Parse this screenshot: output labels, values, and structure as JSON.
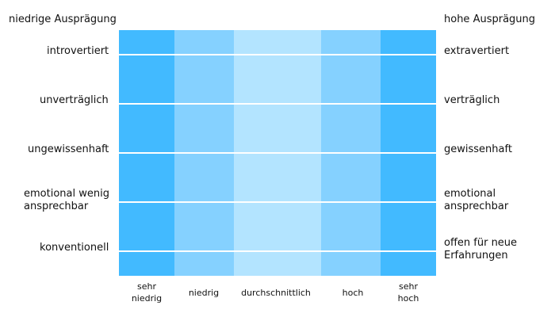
{
  "header": {
    "left": "niedrige Ausprägung",
    "right": "hohe Ausprägung"
  },
  "colors": {
    "very": "#42baff",
    "low_high": "#85d1ff",
    "average": "#b3e4ff",
    "line": "#ffffff"
  },
  "categories": [
    {
      "label_line1": "sehr",
      "label_line2": "niedrig",
      "shade": "very"
    },
    {
      "label_line1": "niedrig",
      "label_line2": "",
      "shade": "low_high"
    },
    {
      "label_line1": "durchschnittlich",
      "label_line2": "",
      "shade": "average"
    },
    {
      "label_line1": "hoch",
      "label_line2": "",
      "shade": "low_high"
    },
    {
      "label_line1": "sehr",
      "label_line2": "hoch",
      "shade": "very"
    }
  ],
  "traits": [
    {
      "low_line1": "introvertiert",
      "low_line2": "",
      "high_line1": "extravertiert",
      "high_line2": ""
    },
    {
      "low_line1": "unverträglich",
      "low_line2": "",
      "high_line1": "verträglich",
      "high_line2": ""
    },
    {
      "low_line1": "ungewissenhaft",
      "low_line2": "",
      "high_line1": "gewissenhaft",
      "high_line2": ""
    },
    {
      "low_line1": "emotional wenig",
      "low_line2": "ansprechbar",
      "high_line1": "emotional",
      "high_line2": "ansprechbar"
    },
    {
      "low_line1": "konventionell",
      "low_line2": "",
      "high_line1": "offen für neue",
      "high_line2": "Erfahrungen"
    }
  ]
}
